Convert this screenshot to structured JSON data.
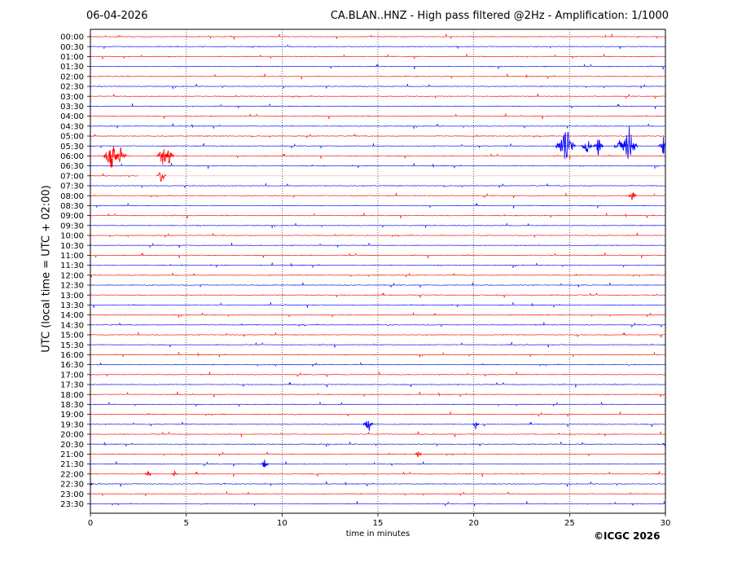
{
  "header": {
    "date": "06-04-2026",
    "title": "CA.BLAN..HNZ - High pass filtered @2Hz - Amplification: 1/1000"
  },
  "footer": {
    "copyright": "©ICGC 2026"
  },
  "colors": {
    "hour_trace": "#ff0000",
    "half_hour_trace": "#0000ff",
    "grid": "#000000",
    "background": "#ffffff"
  },
  "chart_data": {
    "type": "line",
    "title": "CA.BLAN..HNZ - High pass filtered @2Hz - Amplification: 1/1000",
    "xlabel": "time in minutes",
    "ylabel": "UTC (local time = UTC + 02:00)",
    "xlim": [
      0,
      30
    ],
    "xticks": [
      0,
      5,
      10,
      15,
      20,
      25,
      30
    ],
    "grid": "vertical dotted lines at x ticks",
    "rows": [
      "00:00",
      "00:30",
      "01:00",
      "01:30",
      "02:00",
      "02:30",
      "03:00",
      "03:30",
      "04:00",
      "04:30",
      "05:00",
      "05:30",
      "06:00",
      "06:30",
      "07:00",
      "07:30",
      "08:00",
      "08:30",
      "09:00",
      "09:30",
      "10:00",
      "10:30",
      "11:00",
      "11:30",
      "12:00",
      "12:30",
      "13:00",
      "13:30",
      "14:00",
      "14:30",
      "15:00",
      "15:30",
      "16:00",
      "16:30",
      "17:00",
      "17:30",
      "18:00",
      "18:30",
      "19:00",
      "19:30",
      "20:00",
      "20:30",
      "21:00",
      "21:30",
      "22:00",
      "22:30",
      "23:00",
      "23:30"
    ],
    "events": [
      {
        "row": "05:30",
        "minute": 24.8,
        "amplitude": 2.6
      },
      {
        "row": "05:30",
        "minute": 25.9,
        "amplitude": 1.2
      },
      {
        "row": "05:30",
        "minute": 26.5,
        "amplitude": 1.1
      },
      {
        "row": "05:30",
        "minute": 27.6,
        "amplitude": 1.2
      },
      {
        "row": "05:30",
        "minute": 28.1,
        "amplitude": 2.2
      },
      {
        "row": "05:30",
        "minute": 29.9,
        "amplitude": 1.0
      },
      {
        "row": "06:00",
        "minute": 1.1,
        "amplitude": 2.0
      },
      {
        "row": "06:00",
        "minute": 1.6,
        "amplitude": 1.3
      },
      {
        "row": "06:00",
        "minute": 3.8,
        "amplitude": 1.4
      },
      {
        "row": "06:00",
        "minute": 4.1,
        "amplitude": 1.1
      },
      {
        "row": "07:00",
        "minute": 3.7,
        "amplitude": 0.9
      },
      {
        "row": "08:00",
        "minute": 28.3,
        "amplitude": 0.8
      },
      {
        "row": "19:30",
        "minute": 14.5,
        "amplitude": 1.0
      },
      {
        "row": "19:30",
        "minute": 20.1,
        "amplitude": 0.5
      },
      {
        "row": "21:00",
        "minute": 17.1,
        "amplitude": 0.5
      },
      {
        "row": "21:30",
        "minute": 9.1,
        "amplitude": 0.7
      },
      {
        "row": "22:00",
        "minute": 3.0,
        "amplitude": 0.5
      },
      {
        "row": "22:00",
        "minute": 4.4,
        "amplitude": 0.4
      },
      {
        "row": "22:30",
        "minute": 0.0,
        "amplitude": 0.4
      },
      {
        "row": "20:30",
        "minute": 30.0,
        "amplitude": 0.5
      }
    ],
    "gaps": [
      {
        "row": "07:00",
        "from_minute": 2.5,
        "to_minute": 30
      }
    ]
  }
}
